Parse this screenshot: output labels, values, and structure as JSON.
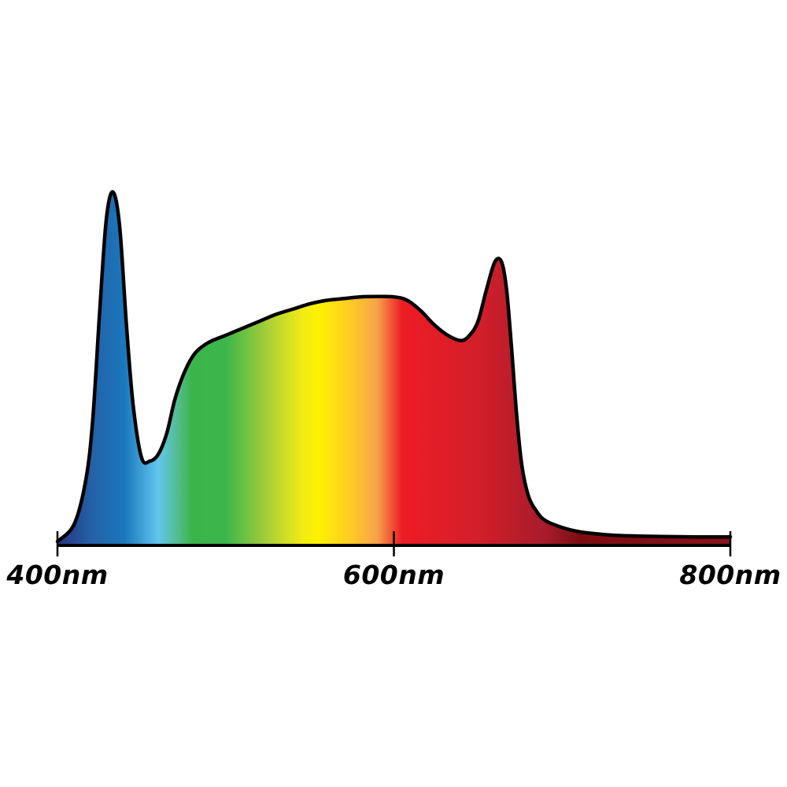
{
  "chart_data": {
    "type": "area",
    "title": "",
    "xlabel": "",
    "ylabel": "",
    "xlim": [
      400,
      800
    ],
    "ylim": [
      0,
      1
    ],
    "grid": false,
    "legend": "none",
    "x_ticks": [
      {
        "value": 400,
        "label": "400nm"
      },
      {
        "value": 600,
        "label": "600nm"
      },
      {
        "value": 800,
        "label": "800nm"
      }
    ],
    "series": [
      {
        "fill": "spectrum-gradient",
        "x": [
          400,
          410,
          417,
          421,
          425,
          429,
          433,
          437,
          441,
          445,
          450,
          455,
          460,
          465,
          470,
          476,
          482,
          490,
          500,
          510,
          520,
          530,
          540,
          550,
          560,
          570,
          580,
          590,
          600,
          608,
          616,
          624,
          632,
          640,
          645,
          650,
          655,
          660,
          664,
          667,
          670,
          673,
          676,
          680,
          685,
          690,
          700,
          710,
          720,
          730,
          740,
          760,
          780,
          800
        ],
        "y": [
          0.0,
          0.05,
          0.18,
          0.35,
          0.65,
          0.92,
          1.0,
          0.9,
          0.62,
          0.39,
          0.24,
          0.23,
          0.25,
          0.31,
          0.41,
          0.49,
          0.54,
          0.57,
          0.59,
          0.61,
          0.63,
          0.65,
          0.665,
          0.68,
          0.69,
          0.695,
          0.7,
          0.701,
          0.7,
          0.69,
          0.66,
          0.62,
          0.59,
          0.575,
          0.59,
          0.63,
          0.72,
          0.8,
          0.8,
          0.72,
          0.55,
          0.36,
          0.22,
          0.13,
          0.085,
          0.06,
          0.04,
          0.028,
          0.022,
          0.018,
          0.016,
          0.014,
          0.013,
          0.013
        ]
      }
    ],
    "gradient_stops": [
      {
        "nm": 400,
        "color": "#27347d"
      },
      {
        "nm": 420,
        "color": "#2460a7"
      },
      {
        "nm": 440,
        "color": "#1a78bd"
      },
      {
        "nm": 460,
        "color": "#62c6ee"
      },
      {
        "nm": 472,
        "color": "#52bc8a"
      },
      {
        "nm": 480,
        "color": "#3bb54a"
      },
      {
        "nm": 500,
        "color": "#3cb54b"
      },
      {
        "nm": 525,
        "color": "#a8cf38"
      },
      {
        "nm": 545,
        "color": "#f0ea15"
      },
      {
        "nm": 555,
        "color": "#fff200"
      },
      {
        "nm": 575,
        "color": "#ffc926"
      },
      {
        "nm": 590,
        "color": "#f7a24a"
      },
      {
        "nm": 605,
        "color": "#ed1c24"
      },
      {
        "nm": 650,
        "color": "#d31f2a"
      },
      {
        "nm": 690,
        "color": "#a81b2b"
      },
      {
        "nm": 710,
        "color": "#7d0d11"
      },
      {
        "nm": 800,
        "color": "#87141b"
      }
    ],
    "outline_color": "#000000"
  }
}
